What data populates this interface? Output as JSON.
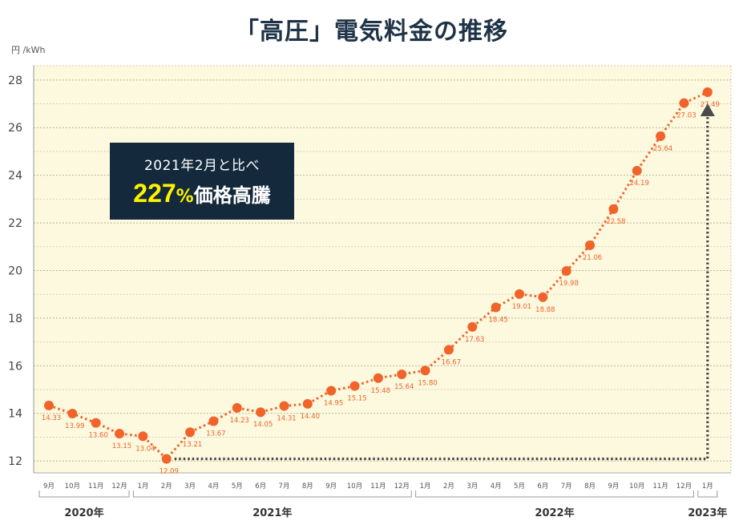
{
  "title": "「高圧」電気料金の推移",
  "callout": {
    "line1": "2021年2月と比べ",
    "percent_value": "227",
    "percent_sign": "%",
    "line2_text": "価格高騰"
  },
  "colors": {
    "line": "#f0632a",
    "plot_bg": "#fcf9df",
    "arrow": "#4a4a4a",
    "callout_bg": "#142a3c",
    "callout_accent": "#fff200"
  },
  "chart_data": {
    "type": "line",
    "ylabel": "円 /kWh",
    "ylim": [
      11.5,
      28.6
    ],
    "yticks": [
      12,
      14,
      16,
      18,
      20,
      22,
      24,
      26,
      28
    ],
    "grid": true,
    "categories": [
      "9月",
      "10月",
      "11月",
      "12月",
      "1月",
      "2月",
      "3月",
      "4月",
      "5月",
      "6月",
      "7月",
      "8月",
      "9月",
      "10月",
      "11月",
      "12月",
      "1月",
      "2月",
      "3月",
      "4月",
      "5月",
      "6月",
      "7月",
      "8月",
      "9月",
      "10月",
      "11月",
      "12月",
      "1月"
    ],
    "series": [
      {
        "values": [
          14.33,
          13.99,
          13.6,
          13.15,
          13.04,
          12.09,
          13.21,
          13.67,
          14.23,
          14.05,
          14.31,
          14.4,
          14.95,
          15.15,
          15.48,
          15.64,
          15.8,
          16.67,
          17.63,
          18.45,
          19.01,
          18.88,
          19.98,
          21.06,
          22.58,
          24.19,
          25.64,
          27.03,
          27.49
        ],
        "labels": [
          "14.33",
          "13.99",
          "13.60",
          "13.15",
          "13.04",
          "12.09",
          "13.21",
          "13.67",
          "14.23",
          "14.05",
          "14.31",
          "14.40",
          "14.95",
          "15.15",
          "15.48",
          "15.64",
          "15.80",
          "16.67",
          "17.63",
          "18.45",
          "19.01",
          "18.88",
          "19.98",
          "21.06",
          "22.58",
          "24.19",
          "25.64",
          "27.03",
          "27.49"
        ]
      }
    ],
    "year_groups": [
      {
        "label": "2020年",
        "start": 0,
        "end": 3
      },
      {
        "label": "2021年",
        "start": 4,
        "end": 15
      },
      {
        "label": "2022年",
        "start": 16,
        "end": 27
      },
      {
        "label": "2023年",
        "start": 28,
        "end": 28
      }
    ],
    "comparison": {
      "from_index": 5,
      "to_index": 28
    }
  }
}
